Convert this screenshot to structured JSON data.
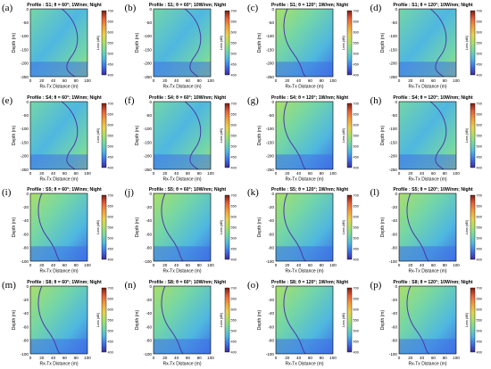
{
  "colorbar": {
    "ticks": [
      "700",
      "650",
      "600",
      "550",
      "500",
      "450",
      "400"
    ],
    "range": [
      400,
      700
    ],
    "label_tx_right": "Loss (dB)",
    "label_rx_left": "Loss (dB)"
  },
  "colors": {
    "cmap": [
      "#3b2b9c",
      "#3f6fe6",
      "#4fb7e0",
      "#74d6a6",
      "#a9e06a",
      "#e6d14e",
      "#f0a03c",
      "#e8603a",
      "#7a1e14"
    ],
    "curve": "#4a3aa8",
    "frame": "#000000"
  },
  "chart_data": [
    {
      "id": "a",
      "label": "(a)",
      "title": "Profile : S1; θ = 60°; 1W/nm; Night",
      "type": "heatmap",
      "xlabel": "Rx-Tx Distance (m)",
      "ylabel": "Depth (m)",
      "xticks": [
        "0",
        "20",
        "40",
        "60",
        "80",
        "100"
      ],
      "yticks": [
        "0",
        "-50",
        "-100",
        "-150",
        "-200",
        "-250"
      ],
      "xlim": [
        0,
        100
      ],
      "ylim": [
        -250,
        0
      ],
      "curve_side": "right"
    },
    {
      "id": "b",
      "label": "(b)",
      "title": "Profile : S1; θ = 60°; 10W/nm; Night",
      "type": "heatmap",
      "xlabel": "Rx-Tx Distance (m)",
      "ylabel": "Depth (m)",
      "xticks": [
        "0",
        "20",
        "40",
        "60",
        "80",
        "100"
      ],
      "yticks": [
        "0",
        "-50",
        "-100",
        "-150",
        "-200",
        "-250"
      ],
      "xlim": [
        0,
        100
      ],
      "ylim": [
        -250,
        0
      ],
      "curve_side": "right"
    },
    {
      "id": "c",
      "label": "(c)",
      "title": "Profile : S1; θ = 120°; 1W/nm; Night",
      "type": "heatmap",
      "xlabel": "Rx-Tx Distance (m)",
      "ylabel": "Depth (m)",
      "xticks": [
        "0",
        "20",
        "40",
        "60",
        "80",
        "100"
      ],
      "yticks": [
        "0",
        "-50",
        "-100",
        "-150",
        "-200",
        "-250"
      ],
      "xlim": [
        0,
        100
      ],
      "ylim": [
        -250,
        0
      ],
      "curve_side": "left"
    },
    {
      "id": "d",
      "label": "(d)",
      "title": "Profile : S1; θ = 120°; 10W/nm; Night",
      "type": "heatmap",
      "xlabel": "Rx-Tx Distance (m)",
      "ylabel": "Depth (m)",
      "xticks": [
        "0",
        "20",
        "40",
        "60",
        "80",
        "100"
      ],
      "yticks": [
        "0",
        "-50",
        "-100",
        "-150",
        "-200",
        "-250"
      ],
      "xlim": [
        0,
        100
      ],
      "ylim": [
        -250,
        0
      ],
      "curve_side": "right"
    },
    {
      "id": "e",
      "label": "(e)",
      "title": "Profile : S4; θ = 60°; 1W/nm; Night",
      "type": "heatmap",
      "xlabel": "Rx-Tx Distance (m)",
      "ylabel": "Depth (m)",
      "xticks": [
        "0",
        "20",
        "40",
        "60",
        "80",
        "100"
      ],
      "yticks": [
        "0",
        "-50",
        "-100",
        "-150",
        "-200",
        "-250"
      ],
      "xlim": [
        0,
        100
      ],
      "ylim": [
        -250,
        0
      ],
      "curve_side": "right"
    },
    {
      "id": "f",
      "label": "(f)",
      "title": "Profile : S4; θ = 60°; 10W/nm; Night",
      "type": "heatmap",
      "xlabel": "Rx-Tx Distance (m)",
      "ylabel": "Depth (m)",
      "xticks": [
        "0",
        "20",
        "40",
        "60",
        "80",
        "100"
      ],
      "yticks": [
        "0",
        "-50",
        "-100",
        "-150",
        "-200",
        "-250"
      ],
      "xlim": [
        0,
        100
      ],
      "ylim": [
        -250,
        0
      ],
      "curve_side": "right"
    },
    {
      "id": "g",
      "label": "(g)",
      "title": "Profile : S4; θ = 120°; 1W/nm; Night",
      "type": "heatmap",
      "xlabel": "Rx-Tx Distance (m)",
      "ylabel": "Depth (m)",
      "xticks": [
        "0",
        "20",
        "40",
        "60",
        "80",
        "100"
      ],
      "yticks": [
        "0",
        "-50",
        "-100",
        "-150",
        "-200",
        "-250"
      ],
      "xlim": [
        0,
        100
      ],
      "ylim": [
        -250,
        0
      ],
      "curve_side": "left"
    },
    {
      "id": "h",
      "label": "(h)",
      "title": "Profile : S4; θ = 120°; 10W/nm; Night",
      "type": "heatmap",
      "xlabel": "Rx-Tx Distance (m)",
      "ylabel": "Depth (m)",
      "xticks": [
        "0",
        "20",
        "40",
        "60",
        "80",
        "100"
      ],
      "yticks": [
        "0",
        "-50",
        "-100",
        "-150",
        "-200",
        "-250"
      ],
      "xlim": [
        0,
        100
      ],
      "ylim": [
        -250,
        0
      ],
      "curve_side": "right"
    },
    {
      "id": "i",
      "label": "(i)",
      "title": "Profile : S5; θ = 60°; 1W/nm; Night",
      "type": "heatmap",
      "xlabel": "Rx-Tx Distance (m)",
      "ylabel": "Depth (m)",
      "xticks": [
        "0",
        "20",
        "40",
        "60",
        "80",
        "100"
      ],
      "yticks": [
        "0",
        "-20",
        "-40",
        "-60",
        "-80",
        "-100"
      ],
      "xlim": [
        0,
        100
      ],
      "ylim": [
        -100,
        0
      ],
      "curve_side": "left"
    },
    {
      "id": "j",
      "label": "(j)",
      "title": "Profile : S5; θ = 60°; 10W/nm; Night",
      "type": "heatmap",
      "xlabel": "Rx-Tx Distance (m)",
      "ylabel": "Depth (m)",
      "xticks": [
        "0",
        "20",
        "40",
        "60",
        "80",
        "100"
      ],
      "yticks": [
        "0",
        "-20",
        "-40",
        "-60",
        "-80",
        "-100"
      ],
      "xlim": [
        0,
        100
      ],
      "ylim": [
        -100,
        0
      ],
      "curve_side": "left"
    },
    {
      "id": "k",
      "label": "(k)",
      "title": "Profile : S5; θ = 120°; 1W/nm; Night",
      "type": "heatmap",
      "xlabel": "Rx-Tx Distance (m)",
      "ylabel": "Depth (m)",
      "xticks": [
        "0",
        "20",
        "40",
        "60",
        "80",
        "100"
      ],
      "yticks": [
        "0",
        "-20",
        "-40",
        "-60",
        "-80",
        "-100"
      ],
      "xlim": [
        0,
        100
      ],
      "ylim": [
        -100,
        0
      ],
      "curve_side": "left"
    },
    {
      "id": "l",
      "label": "(l)",
      "title": "Profile : S5; θ = 120°; 10W/nm; Night",
      "type": "heatmap",
      "xlabel": "Rx-Tx Distance (m)",
      "ylabel": "Depth (m)",
      "xticks": [
        "0",
        "20",
        "40",
        "60",
        "80",
        "100"
      ],
      "yticks": [
        "0",
        "-20",
        "-40",
        "-60",
        "-80",
        "-100"
      ],
      "xlim": [
        0,
        100
      ],
      "ylim": [
        -100,
        0
      ],
      "curve_side": "left"
    },
    {
      "id": "m",
      "label": "(m)",
      "title": "Profile : S8; θ = 60°; 1W/nm; Night",
      "type": "heatmap",
      "xlabel": "Rx-Tx Distance (m)",
      "ylabel": "Depth (m)",
      "xticks": [
        "0",
        "20",
        "40",
        "60",
        "80",
        "100"
      ],
      "yticks": [
        "0",
        "-20",
        "-40",
        "-60",
        "-80",
        "-100"
      ],
      "xlim": [
        0,
        100
      ],
      "ylim": [
        -100,
        0
      ],
      "curve_side": "left"
    },
    {
      "id": "n",
      "label": "(n)",
      "title": "Profile : S8; θ = 60°; 10W/nm; Night",
      "type": "heatmap",
      "xlabel": "Rx-Tx Distance (m)",
      "ylabel": "Depth (m)",
      "xticks": [
        "0",
        "20",
        "40",
        "60",
        "80",
        "100"
      ],
      "yticks": [
        "0",
        "-20",
        "-40",
        "-60",
        "-80",
        "-100"
      ],
      "xlim": [
        0,
        100
      ],
      "ylim": [
        -100,
        0
      ],
      "curve_side": "left"
    },
    {
      "id": "o",
      "label": "(o)",
      "title": "Profile : S8; θ = 120°; 1W/nm; Night",
      "type": "heatmap",
      "xlabel": "Rx-Tx Distance (m)",
      "ylabel": "Depth (m)",
      "xticks": [
        "0",
        "20",
        "40",
        "60",
        "80",
        "100"
      ],
      "yticks": [
        "0",
        "-20",
        "-40",
        "-60",
        "-80",
        "-100"
      ],
      "xlim": [
        0,
        100
      ],
      "ylim": [
        -100,
        0
      ],
      "curve_side": "left"
    },
    {
      "id": "p",
      "label": "(p)",
      "title": "Profile : S8; θ = 120°; 10W/nm; Night",
      "type": "heatmap",
      "xlabel": "Rx-Tx Distance (m)",
      "ylabel": "Depth (m)",
      "xticks": [
        "0",
        "20",
        "40",
        "60",
        "80",
        "100"
      ],
      "yticks": [
        "0",
        "-20",
        "-40",
        "-60",
        "-80",
        "-100"
      ],
      "xlim": [
        0,
        100
      ],
      "ylim": [
        -100,
        0
      ],
      "curve_side": "left"
    }
  ]
}
